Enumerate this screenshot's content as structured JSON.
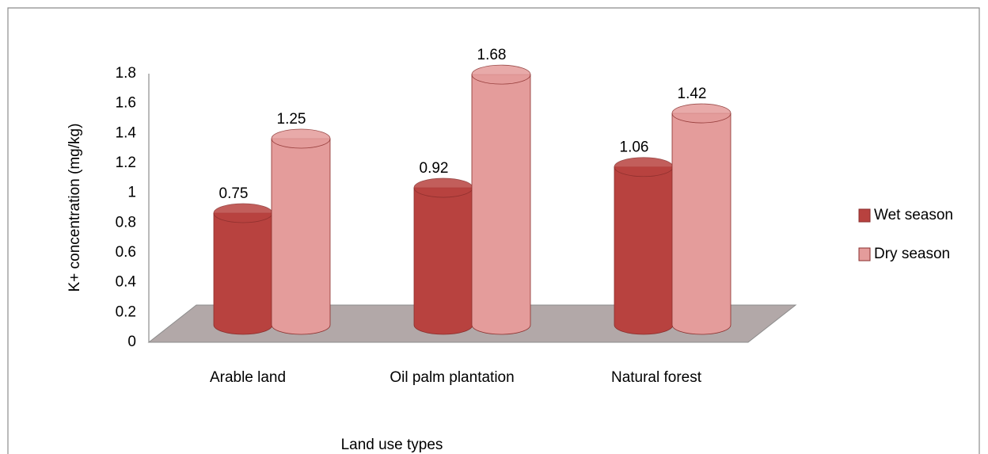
{
  "chart_data": {
    "type": "bar3d",
    "categories": [
      "Arable land",
      "Oil palm plantation",
      "Natural forest"
    ],
    "series": [
      {
        "name": "Wet season",
        "color": "#b8423f",
        "values": [
          0.75,
          0.92,
          1.06
        ]
      },
      {
        "name": "Dry season",
        "color": "#e49c9b",
        "values": [
          1.25,
          1.68,
          1.42
        ]
      }
    ],
    "ylim": [
      0,
      1.8
    ],
    "yticks": [
      0,
      0.2,
      0.4,
      0.6,
      0.8,
      1,
      1.2,
      1.4,
      1.6,
      1.8
    ],
    "ylabel": "K+ concentration (mg/kg)",
    "xlabel": "Land use types",
    "legend": "right"
  }
}
